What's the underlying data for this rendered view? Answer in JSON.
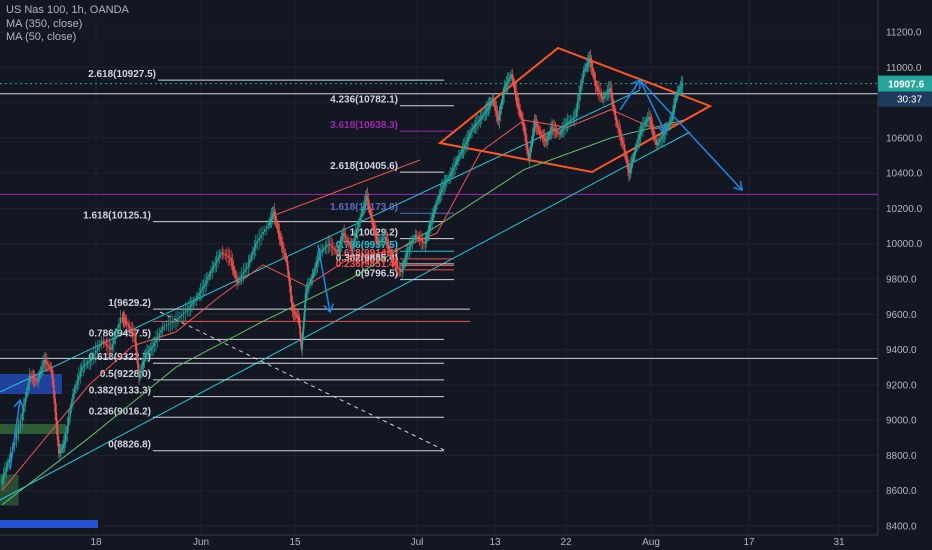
{
  "legend": {
    "symbol": "US Nas 100, 1h, OANDA",
    "ma1": "MA (350, close)",
    "ma2": "MA (50, close)"
  },
  "price_badge": {
    "price": "10907.6",
    "countdown": "30:37"
  },
  "colors": {
    "background": "#131722",
    "channel": "#26c6da",
    "diamond": "#ff5722",
    "arrow": "#1e88e5",
    "purple": "#9c27b0",
    "fib": "#d1d4dc",
    "fib_red": "#ef5350",
    "ma350": "#66bb6a",
    "ma50": "#ef5350"
  },
  "chart_data": {
    "type": "candlestick",
    "title": "US Nas 100, 1h, OANDA",
    "ylim": [
      8400,
      11200
    ],
    "y_ticks": [
      "11200.0",
      "11000.0",
      "10800.0",
      "10600.0",
      "10400.0",
      "10200.0",
      "10000.0",
      "9800.0",
      "9600.0",
      "9400.0",
      "9200.0",
      "9000.0",
      "8800.0",
      "8600.0",
      "8400.0"
    ],
    "x_ticks": [
      "18",
      "Jun",
      "15",
      "Jul",
      "13",
      "22",
      "Aug",
      "17",
      "31"
    ],
    "price_path": [
      {
        "x": 0,
        "y": 8640
      },
      {
        "x": 0.6,
        "y": 8780
      },
      {
        "x": 1.4,
        "y": 9000
      },
      {
        "x": 2.0,
        "y": 9250
      },
      {
        "x": 2.5,
        "y": 9220
      },
      {
        "x": 3.0,
        "y": 9340
      },
      {
        "x": 3.5,
        "y": 9280
      },
      {
        "x": 4.0,
        "y": 8810
      },
      {
        "x": 4.4,
        "y": 8880
      },
      {
        "x": 5.0,
        "y": 9150
      },
      {
        "x": 5.6,
        "y": 9300
      },
      {
        "x": 6.2,
        "y": 9340
      },
      {
        "x": 7.0,
        "y": 9450
      },
      {
        "x": 7.6,
        "y": 9400
      },
      {
        "x": 8.3,
        "y": 9580
      },
      {
        "x": 8.6,
        "y": 9560
      },
      {
        "x": 9.2,
        "y": 9480
      },
      {
        "x": 9.5,
        "y": 9240
      },
      {
        "x": 10.0,
        "y": 9380
      },
      {
        "x": 10.5,
        "y": 9420
      },
      {
        "x": 11.2,
        "y": 9530
      },
      {
        "x": 12.0,
        "y": 9560
      },
      {
        "x": 12.8,
        "y": 9620
      },
      {
        "x": 13.4,
        "y": 9680
      },
      {
        "x": 14.0,
        "y": 9760
      },
      {
        "x": 14.6,
        "y": 9860
      },
      {
        "x": 15.2,
        "y": 9950
      },
      {
        "x": 15.8,
        "y": 9920
      },
      {
        "x": 16.3,
        "y": 9780
      },
      {
        "x": 17.0,
        "y": 9870
      },
      {
        "x": 17.6,
        "y": 10000
      },
      {
        "x": 18.4,
        "y": 10100
      },
      {
        "x": 18.8,
        "y": 10180
      },
      {
        "x": 19.2,
        "y": 10040
      },
      {
        "x": 19.7,
        "y": 9900
      },
      {
        "x": 20.1,
        "y": 9620
      },
      {
        "x": 20.5,
        "y": 9580
      },
      {
        "x": 20.7,
        "y": 9400
      },
      {
        "x": 21.0,
        "y": 9720
      },
      {
        "x": 21.5,
        "y": 9820
      },
      {
        "x": 22.0,
        "y": 9950
      },
      {
        "x": 22.6,
        "y": 10000
      },
      {
        "x": 23.2,
        "y": 9950
      },
      {
        "x": 23.6,
        "y": 10060
      },
      {
        "x": 24.2,
        "y": 9970
      },
      {
        "x": 24.8,
        "y": 10150
      },
      {
        "x": 25.2,
        "y": 10270
      },
      {
        "x": 25.6,
        "y": 10120
      },
      {
        "x": 26.0,
        "y": 10000
      },
      {
        "x": 26.5,
        "y": 10040
      },
      {
        "x": 27.0,
        "y": 9900
      },
      {
        "x": 27.6,
        "y": 9840
      },
      {
        "x": 28.0,
        "y": 9950
      },
      {
        "x": 28.6,
        "y": 10050
      },
      {
        "x": 29.2,
        "y": 10000
      },
      {
        "x": 29.5,
        "y": 10080
      },
      {
        "x": 30.0,
        "y": 10220
      },
      {
        "x": 30.5,
        "y": 10330
      },
      {
        "x": 31.0,
        "y": 10390
      },
      {
        "x": 31.5,
        "y": 10480
      },
      {
        "x": 32.0,
        "y": 10560
      },
      {
        "x": 32.5,
        "y": 10650
      },
      {
        "x": 33.0,
        "y": 10700
      },
      {
        "x": 33.5,
        "y": 10760
      },
      {
        "x": 33.9,
        "y": 10820
      },
      {
        "x": 34.3,
        "y": 10700
      },
      {
        "x": 34.7,
        "y": 10880
      },
      {
        "x": 35.2,
        "y": 10960
      },
      {
        "x": 35.6,
        "y": 10800
      },
      {
        "x": 36.0,
        "y": 10680
      },
      {
        "x": 36.4,
        "y": 10480
      },
      {
        "x": 36.8,
        "y": 10690
      },
      {
        "x": 37.2,
        "y": 10620
      },
      {
        "x": 37.6,
        "y": 10580
      },
      {
        "x": 38.0,
        "y": 10660
      },
      {
        "x": 38.5,
        "y": 10620
      },
      {
        "x": 39.0,
        "y": 10680
      },
      {
        "x": 39.6,
        "y": 10720
      },
      {
        "x": 40.2,
        "y": 10980
      },
      {
        "x": 40.6,
        "y": 11050
      },
      {
        "x": 41.0,
        "y": 10900
      },
      {
        "x": 41.5,
        "y": 10820
      },
      {
        "x": 42.0,
        "y": 10880
      },
      {
        "x": 42.4,
        "y": 10700
      },
      {
        "x": 42.9,
        "y": 10560
      },
      {
        "x": 43.3,
        "y": 10400
      },
      {
        "x": 43.7,
        "y": 10520
      },
      {
        "x": 44.2,
        "y": 10660
      },
      {
        "x": 44.7,
        "y": 10720
      },
      {
        "x": 45.2,
        "y": 10560
      },
      {
        "x": 45.7,
        "y": 10620
      },
      {
        "x": 46.2,
        "y": 10700
      },
      {
        "x": 46.6,
        "y": 10850
      },
      {
        "x": 47.0,
        "y": 10907
      }
    ],
    "ma50": [
      {
        "x": 0,
        "y": 8600
      },
      {
        "x": 3,
        "y": 8900
      },
      {
        "x": 6,
        "y": 9200
      },
      {
        "x": 9,
        "y": 9420
      },
      {
        "x": 12,
        "y": 9500
      },
      {
        "x": 15,
        "y": 9700
      },
      {
        "x": 18,
        "y": 9880
      },
      {
        "x": 21,
        "y": 9760
      },
      {
        "x": 24,
        "y": 9920
      },
      {
        "x": 27,
        "y": 9960
      },
      {
        "x": 30,
        "y": 10060
      },
      {
        "x": 33,
        "y": 10520
      },
      {
        "x": 36,
        "y": 10700
      },
      {
        "x": 39,
        "y": 10660
      },
      {
        "x": 42,
        "y": 10760
      },
      {
        "x": 45,
        "y": 10650
      },
      {
        "x": 47,
        "y": 10690
      }
    ],
    "ma350": [
      {
        "x": 0,
        "y": 8520
      },
      {
        "x": 6,
        "y": 8900
      },
      {
        "x": 12,
        "y": 9300
      },
      {
        "x": 18,
        "y": 9560
      },
      {
        "x": 24,
        "y": 9800
      },
      {
        "x": 30,
        "y": 10100
      },
      {
        "x": 36,
        "y": 10420
      },
      {
        "x": 42,
        "y": 10600
      },
      {
        "x": 47,
        "y": 10700
      }
    ],
    "fib_levels": [
      {
        "label": "2.618(10927.5)",
        "price": 10927.5,
        "color": "#d1d4dc"
      },
      {
        "label": "4.236(10782.1)",
        "price": 10782.1,
        "color": "#d1d4dc"
      },
      {
        "label": "3.618(10638.3)",
        "price": 10638.3,
        "color": "#9c27b0"
      },
      {
        "label": "2.618(10405.6)",
        "price": 10405.6,
        "color": "#d1d4dc"
      },
      {
        "label": "1.618(10125.1)",
        "price": 10125.1,
        "color": "#d1d4dc"
      },
      {
        "label": "1.618(10173.0)",
        "price": 10173.0,
        "color": "#5c6bc0"
      },
      {
        "label": "1(10029.2)",
        "price": 10029.2,
        "color": "#d1d4dc"
      },
      {
        "label": "0.786(9957.5)",
        "price": 9957.5,
        "color": "#26c6da"
      },
      {
        "label": "0.618(9914.1)",
        "price": 9914.1,
        "color": "#ef5350"
      },
      {
        "label": "0.5(9876.7)",
        "price": 9876.7,
        "color": "#ef5350"
      },
      {
        "label": "0.382(9885.4)",
        "price": 9885.4,
        "color": "#d1d4dc"
      },
      {
        "label": "0.236(9851.4)",
        "price": 9851.4,
        "color": "#ef5350"
      },
      {
        "label": "0(9796.5)",
        "price": 9796.5,
        "color": "#d1d4dc"
      },
      {
        "label": "1(9629.2)",
        "price": 9629.2,
        "color": "#d1d4dc"
      },
      {
        "label": "0.786(9457.5)",
        "price": 9457.5,
        "color": "#d1d4dc"
      },
      {
        "label": "0.618(9322.7)",
        "price": 9322.7,
        "color": "#d1d4dc"
      },
      {
        "label": "0.5(9228.0)",
        "price": 9228.0,
        "color": "#d1d4dc"
      },
      {
        "label": "0.382(9133.3)",
        "price": 9133.3,
        "color": "#d1d4dc"
      },
      {
        "label": "0.236(9016.2)",
        "price": 9016.2,
        "color": "#d1d4dc"
      },
      {
        "label": "0(8826.8)",
        "price": 8826.8,
        "color": "#d1d4dc"
      }
    ],
    "horizontal_levels": [
      {
        "price": 10280,
        "color": "#9c27b0"
      },
      {
        "price": 10850,
        "color": "#d1d4dc"
      },
      {
        "price": 9350,
        "color": "#d1d4dc"
      }
    ]
  }
}
